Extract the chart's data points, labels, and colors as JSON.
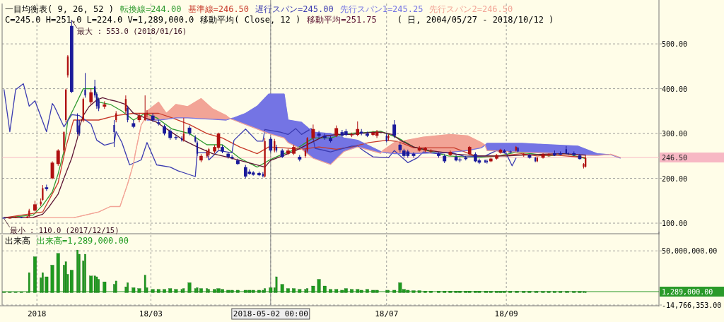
{
  "chart_data": [
    {
      "type": "candlestick",
      "title": "一目均衡表( 9, 26, 52 )",
      "subtitle": "( 日, 2004/05/27 - 2018/10/12 )",
      "annotations": [
        "C=245.0 H=251.0 L=224.0 V=1,289,000.0",
        "移動平均( Close, 12 )",
        {
          "text": "最大 : 553.0 (2018/01/16)",
          "x": "2018-01-19",
          "y": 553
        },
        {
          "text": "最小 : 110.0 (2017/12/15)",
          "x": "2017-12-15",
          "y": 110
        }
      ],
      "x": [
        "2017-12-15",
        "2017-12-18",
        "2017-12-21",
        "2017-12-24",
        "2017-12-27",
        "2017-12-28",
        "2017-12-31",
        "2018-01-03",
        "2018-01-04",
        "2018-01-06",
        "2018-01-09",
        "2018-01-12",
        "2018-01-15",
        "2018-01-16",
        "2018-01-17",
        "2018-01-19",
        "2018-01-22",
        "2018-01-23",
        "2018-01-25",
        "2018-01-26",
        "2018-01-29",
        "2018-01-31",
        "2018-02-01",
        "2018-02-02",
        "2018-02-05",
        "2018-02-10",
        "2018-02-11",
        "2018-02-16",
        "2018-02-17",
        "2018-02-20",
        "2018-02-23",
        "2018-02-26",
        "2018-02-27",
        "2018-03-02",
        "2018-03-05",
        "2018-03-08",
        "2018-03-11",
        "2018-03-14",
        "2018-03-17",
        "2018-03-18",
        "2018-03-21",
        "2018-03-24",
        "2018-03-25",
        "2018-03-27",
        "2018-03-30",
        "2018-03-31",
        "2018-04-03",
        "2018-04-05",
        "2018-04-07",
        "2018-04-10",
        "2018-04-12",
        "2018-04-15",
        "2018-04-19",
        "2018-04-21",
        "2018-04-23",
        "2018-04-26",
        "2018-04-28",
        "2018-04-29",
        "2018-05-02",
        "2018-05-04",
        "2018-05-05",
        "2018-05-08",
        "2018-05-11",
        "2018-05-14",
        "2018-05-17",
        "2018-05-20",
        "2018-05-21",
        "2018-05-24",
        "2018-05-27",
        "2018-05-30",
        "2018-06-02",
        "2018-06-05",
        "2018-06-08",
        "2018-06-10",
        "2018-06-13",
        "2018-06-16",
        "2018-06-18",
        "2018-06-21",
        "2018-06-24",
        "2018-06-26",
        "2018-07-01",
        "2018-07-02",
        "2018-07-05",
        "2018-07-08",
        "2018-07-10",
        "2018-07-12",
        "2018-07-15",
        "2018-07-18",
        "2018-07-21",
        "2018-07-24",
        "2018-07-28",
        "2018-07-31",
        "2018-08-03",
        "2018-08-06",
        "2018-08-08",
        "2018-08-11",
        "2018-08-13",
        "2018-08-16",
        "2018-08-18",
        "2018-08-21",
        "2018-08-22",
        "2018-08-24",
        "2018-08-27",
        "2018-08-29",
        "2018-08-31",
        "2018-09-03",
        "2018-09-06",
        "2018-09-07",
        "2018-09-10",
        "2018-09-13",
        "2018-09-16",
        "2018-09-17",
        "2018-09-20",
        "2018-09-23",
        "2018-09-26",
        "2018-09-29",
        "2018-10-02",
        "2018-10-03",
        "2018-10-06",
        "2018-10-09",
        "2018-10-11",
        "2018-10-12"
      ],
      "ohlc": [
        [
          112,
          114,
          110,
          111
        ],
        [
          111,
          113,
          110,
          112
        ],
        [
          112,
          115,
          111,
          113
        ],
        [
          113,
          114,
          111,
          112
        ],
        [
          112,
          116,
          111,
          115
        ],
        [
          115,
          132,
          114,
          128
        ],
        [
          128,
          150,
          126,
          142
        ],
        [
          142,
          155,
          138,
          148
        ],
        [
          152,
          185,
          150,
          178
        ],
        [
          180,
          186,
          172,
          176
        ],
        [
          200,
          238,
          198,
          235
        ],
        [
          232,
          265,
          228,
          262
        ],
        [
          262,
          305,
          258,
          303
        ],
        [
          330,
          400,
          325,
          398
        ],
        [
          430,
          475,
          425,
          472
        ],
        [
          540,
          553,
          390,
          393
        ],
        [
          330,
          345,
          298,
          303
        ],
        [
          318,
          330,
          295,
          300
        ],
        [
          330,
          380,
          325,
          377
        ],
        [
          398,
          435,
          380,
          385
        ],
        [
          370,
          400,
          365,
          392
        ],
        [
          405,
          420,
          380,
          385
        ],
        [
          388,
          392,
          355,
          361
        ],
        [
          375,
          380,
          350,
          356
        ],
        [
          360,
          372,
          355,
          365
        ],
        [
          319,
          330,
          270,
          303
        ],
        [
          330,
          350,
          325,
          345
        ],
        [
          350,
          385,
          345,
          377
        ],
        [
          357,
          362,
          325,
          330
        ],
        [
          323,
          330,
          312,
          315
        ],
        [
          330,
          345,
          325,
          340
        ],
        [
          330,
          385,
          328,
          345
        ],
        [
          342,
          352,
          336,
          346
        ],
        [
          340,
          345,
          326,
          330
        ],
        [
          325,
          330,
          318,
          322
        ],
        [
          316,
          320,
          296,
          300
        ],
        [
          306,
          310,
          286,
          290
        ],
        [
          292,
          296,
          286,
          290
        ],
        [
          290,
          294,
          282,
          285
        ],
        [
          285,
          335,
          282,
          300
        ],
        [
          313,
          318,
          296,
          300
        ],
        [
          292,
          296,
          280,
          282
        ],
        [
          280,
          284,
          250,
          255
        ],
        [
          240,
          254,
          236,
          250
        ],
        [
          250,
          264,
          246,
          260
        ],
        [
          252,
          268,
          248,
          265
        ],
        [
          260,
          274,
          256,
          270
        ],
        [
          268,
          302,
          264,
          300
        ],
        [
          270,
          274,
          256,
          260
        ],
        [
          255,
          258,
          244,
          248
        ],
        [
          248,
          252,
          242,
          245
        ],
        [
          240,
          244,
          230,
          232
        ],
        [
          225,
          230,
          200,
          204
        ],
        [
          215,
          220,
          208,
          210
        ],
        [
          213,
          216,
          206,
          208
        ],
        [
          212,
          215,
          205,
          207
        ],
        [
          210,
          214,
          202,
          205
        ],
        [
          204,
          290,
          202,
          283
        ],
        [
          288,
          292,
          258,
          262
        ],
        [
          262,
          288,
          258,
          283
        ],
        [
          270,
          275,
          258,
          262
        ],
        [
          262,
          266,
          245,
          248
        ],
        [
          255,
          266,
          252,
          262
        ],
        [
          255,
          275,
          252,
          270
        ],
        [
          248,
          252,
          238,
          242
        ],
        [
          250,
          266,
          246,
          262
        ],
        [
          262,
          292,
          258,
          290
        ],
        [
          290,
          320,
          286,
          310
        ],
        [
          300,
          306,
          290,
          295
        ],
        [
          295,
          300,
          286,
          290
        ],
        [
          290,
          294,
          280,
          283
        ],
        [
          295,
          318,
          292,
          312
        ],
        [
          303,
          308,
          292,
          295
        ],
        [
          305,
          310,
          294,
          297
        ],
        [
          296,
          302,
          292,
          298
        ],
        [
          297,
          327,
          294,
          310
        ],
        [
          304,
          310,
          296,
          300
        ],
        [
          300,
          304,
          292,
          295
        ],
        [
          297,
          306,
          294,
          302
        ],
        [
          295,
          308,
          290,
          304
        ],
        [
          295,
          300,
          280,
          283
        ],
        [
          290,
          298,
          284,
          294
        ],
        [
          320,
          330,
          290,
          295
        ],
        [
          275,
          278,
          258,
          263
        ],
        [
          262,
          266,
          246,
          250
        ],
        [
          260,
          264,
          246,
          250
        ],
        [
          255,
          258,
          246,
          250
        ],
        [
          262,
          272,
          260,
          268
        ],
        [
          262,
          270,
          258,
          268
        ],
        [
          260,
          265,
          256,
          262
        ],
        [
          255,
          258,
          246,
          250
        ],
        [
          250,
          254,
          234,
          238
        ],
        [
          252,
          262,
          250,
          259
        ],
        [
          248,
          252,
          238,
          240
        ],
        [
          242,
          246,
          236,
          240
        ],
        [
          246,
          250,
          240,
          243
        ],
        [
          254,
          272,
          252,
          270
        ],
        [
          254,
          258,
          236,
          238
        ],
        [
          240,
          244,
          232,
          235
        ],
        [
          240,
          242,
          234,
          236
        ],
        [
          239,
          242,
          233,
          236
        ],
        [
          238,
          246,
          236,
          244
        ],
        [
          244,
          254,
          242,
          252
        ],
        [
          257,
          266,
          255,
          264
        ],
        [
          262,
          265,
          256,
          258
        ],
        [
          260,
          262,
          256,
          258
        ],
        [
          262,
          272,
          260,
          270
        ],
        [
          268,
          270,
          258,
          260
        ],
        [
          252,
          256,
          248,
          254
        ],
        [
          252,
          254,
          244,
          246
        ],
        [
          246,
          248,
          236,
          238
        ],
        [
          238,
          248,
          236,
          246
        ],
        [
          246,
          256,
          244,
          254
        ],
        [
          252,
          256,
          248,
          254
        ],
        [
          256,
          262,
          250,
          251
        ],
        [
          256,
          260,
          252,
          253
        ],
        [
          265,
          272,
          254,
          255
        ],
        [
          256,
          258,
          252,
          254
        ],
        [
          256,
          260,
          250,
          252
        ],
        [
          251,
          254,
          242,
          243
        ],
        [
          226,
          234,
          222,
          232
        ],
        [
          226,
          251,
          224,
          245
        ]
      ],
      "series": [
        {
          "name": "転換線=244.00",
          "type": "line",
          "color": "#2e9a2e",
          "x": [
            "2017-12-15",
            "2017-12-30",
            "2018-01-04",
            "2018-01-09",
            "2018-01-12",
            "2018-01-15",
            "2018-01-17",
            "2018-01-20",
            "2018-01-25",
            "2018-01-31",
            "2018-02-02",
            "2018-02-08",
            "2018-02-14",
            "2018-02-20",
            "2018-02-26",
            "2018-03-04",
            "2018-03-12",
            "2018-03-21",
            "2018-03-30",
            "2018-04-07",
            "2018-04-16",
            "2018-04-25",
            "2018-05-01",
            "2018-05-07",
            "2018-05-15",
            "2018-05-24",
            "2018-06-02",
            "2018-06-10",
            "2018-06-19",
            "2018-06-28",
            "2018-07-07",
            "2018-07-15",
            "2018-07-24",
            "2018-08-02",
            "2018-08-11",
            "2018-08-19",
            "2018-08-28",
            "2018-09-06",
            "2018-09-14",
            "2018-09-23",
            "2018-10-02",
            "2018-10-12"
          ],
          "values": [
            112,
            118,
            140,
            170,
            210,
            260,
            330,
            355,
            400,
            400,
            370,
            365,
            350,
            330,
            345,
            335,
            310,
            300,
            275,
            275,
            245,
            225,
            240,
            252,
            265,
            290,
            290,
            300,
            302,
            305,
            290,
            270,
            260,
            250,
            248,
            247,
            250,
            258,
            255,
            250,
            255,
            244
          ]
        },
        {
          "name": "基準線=246.50",
          "type": "line",
          "color": "#c83a2a",
          "x": [
            "2017-12-15",
            "2018-01-04",
            "2018-01-12",
            "2018-01-16",
            "2018-01-20",
            "2018-02-02",
            "2018-02-11",
            "2018-02-20",
            "2018-03-05",
            "2018-03-12",
            "2018-03-21",
            "2018-03-30",
            "2018-04-07",
            "2018-04-16",
            "2018-04-25",
            "2018-05-01",
            "2018-05-09",
            "2018-05-18",
            "2018-05-27",
            "2018-06-05",
            "2018-06-13",
            "2018-06-22",
            "2018-07-01",
            "2018-07-07",
            "2018-07-15",
            "2018-07-24",
            "2018-08-05",
            "2018-08-16",
            "2018-08-28",
            "2018-09-09",
            "2018-09-17",
            "2018-09-26",
            "2018-10-12"
          ],
          "values": [
            112,
            125,
            190,
            270,
            330,
            330,
            340,
            345,
            345,
            335,
            320,
            300,
            290,
            270,
            255,
            270,
            268,
            265,
            270,
            265,
            270,
            280,
            285,
            282,
            268,
            268,
            268,
            250,
            250,
            255,
            250,
            252,
            246.5
          ]
        },
        {
          "name": "遅行スパン=245.00",
          "type": "line",
          "color": "#3b3bb0",
          "x": [
            "2017-12-15",
            "2017-12-18",
            "2017-12-21",
            "2017-12-25",
            "2017-12-28",
            "2017-12-31",
            "2018-01-06",
            "2018-01-09",
            "2018-01-10",
            "2018-01-15",
            "2018-01-19",
            "2018-01-23",
            "2018-01-29",
            "2018-02-01",
            "2018-02-05",
            "2018-02-10",
            "2018-02-11",
            "2018-02-14",
            "2018-02-18",
            "2018-02-24",
            "2018-02-27",
            "2018-03-04",
            "2018-03-11",
            "2018-03-15",
            "2018-03-24",
            "2018-03-25",
            "2018-03-30",
            "2018-03-31",
            "2018-04-05",
            "2018-04-12",
            "2018-04-13",
            "2018-04-19",
            "2018-04-25",
            "2018-04-28",
            "2018-04-29",
            "2018-05-07",
            "2018-05-11",
            "2018-05-15",
            "2018-05-18",
            "2018-05-23",
            "2018-05-25",
            "2018-06-02",
            "2018-06-13",
            "2018-06-16",
            "2018-06-19",
            "2018-06-24",
            "2018-07-02",
            "2018-07-05",
            "2018-07-12",
            "2018-07-17",
            "2018-07-20",
            "2018-07-27",
            "2018-08-03",
            "2018-08-11",
            "2018-08-21",
            "2018-08-27",
            "2018-09-01",
            "2018-09-04",
            "2018-09-06"
          ],
          "values": [
            398,
            304,
            398,
            411,
            361,
            373,
            304,
            367,
            361,
            315,
            342,
            340,
            321,
            285,
            274,
            280,
            304,
            280,
            230,
            241,
            280,
            230,
            225,
            217,
            204,
            257,
            257,
            241,
            262,
            257,
            285,
            310,
            283,
            283,
            309,
            303,
            298,
            311,
            298,
            311,
            267,
            259,
            272,
            272,
            262,
            248,
            246,
            262,
            235,
            246,
            259,
            255,
            258,
            248,
            250,
            262,
            255,
            228,
            245
          ]
        },
        {
          "name": "先行スパン1=245.25",
          "type": "line",
          "color": "#7474e4",
          "x": [
            "2018-02-27",
            "2018-03-05",
            "2018-03-09",
            "2018-03-14",
            "2018-03-20",
            "2018-03-27",
            "2018-04-02",
            "2018-04-09",
            "2018-04-11",
            "2018-04-13",
            "2018-04-19",
            "2018-04-25",
            "2018-05-01",
            "2018-05-09",
            "2018-05-11",
            "2018-05-18",
            "2018-05-24",
            "2018-06-02",
            "2018-06-09",
            "2018-06-16",
            "2018-06-28",
            "2018-06-29",
            "2018-07-05",
            "2018-07-20",
            "2018-08-03",
            "2018-08-12",
            "2018-08-19",
            "2018-08-21",
            "2018-08-22",
            "2018-09-09",
            "2018-09-23",
            "2018-10-08",
            "2018-10-18",
            "2018-10-24",
            "2018-10-25",
            "2018-10-30"
          ],
          "values": [
            330,
            330,
            332,
            335,
            335,
            333,
            332,
            330,
            333,
            335,
            345,
            361,
            388,
            388,
            330,
            325,
            303,
            300,
            290,
            285,
            260,
            258,
            255,
            256,
            258,
            262,
            268,
            274,
            278,
            278,
            275,
            272,
            255,
            253,
            253,
            245.25
          ],
          "lower": [
            null,
            null,
            null,
            null,
            null,
            null,
            null,
            null,
            333,
            330,
            320,
            310,
            300,
            290,
            280,
            265,
            245,
            231,
            260,
            270,
            256,
            null,
            null,
            null,
            null,
            null,
            null,
            274,
            262,
            258,
            256,
            252,
            251,
            253,
            null,
            null
          ],
          "upper": [
            null,
            null,
            null,
            null,
            null,
            null,
            null,
            null,
            333,
            335,
            345,
            361,
            388,
            388,
            330,
            325,
            303,
            300,
            290,
            285,
            260,
            null,
            null,
            null,
            null,
            null,
            null,
            274,
            278,
            278,
            275,
            272,
            255,
            253,
            null,
            null
          ]
        },
        {
          "name": "先行スパン2=246.50",
          "type": "line",
          "color": "#f2a496",
          "x": [
            "2017-12-15",
            "2018-01-20",
            "2018-02-02",
            "2018-02-08",
            "2018-02-13",
            "2018-02-17",
            "2018-02-20",
            "2018-02-21",
            "2018-02-24",
            "2018-02-26",
            "2018-02-27",
            "2018-03-05",
            "2018-03-09",
            "2018-03-14",
            "2018-03-20",
            "2018-03-27",
            "2018-04-02",
            "2018-04-09",
            "2018-04-11",
            "2018-04-13",
            "2018-04-19",
            "2018-04-25",
            "2018-05-01",
            "2018-05-09",
            "2018-05-11",
            "2018-05-18",
            "2018-05-24",
            "2018-06-02",
            "2018-06-09",
            "2018-06-16",
            "2018-06-28",
            "2018-06-29",
            "2018-07-05",
            "2018-07-20",
            "2018-08-03",
            "2018-08-12",
            "2018-08-19",
            "2018-08-21",
            "2018-08-22",
            "2018-09-09",
            "2018-09-23",
            "2018-10-08",
            "2018-10-18",
            "2018-10-24",
            "2018-10-25",
            "2018-10-30"
          ],
          "values": [
            112,
            112,
            125,
            137,
            137,
            188,
            233,
            257,
            319,
            334,
            350,
            370,
            345,
            365,
            360,
            378,
            355,
            340,
            333,
            330,
            320,
            310,
            300,
            290,
            280,
            265,
            245,
            231,
            260,
            270,
            256,
            262,
            280,
            292,
            298,
            295,
            280,
            274,
            262,
            258,
            256,
            252,
            251,
            253,
            254,
            246.5
          ],
          "lower": [
            112,
            112,
            125,
            137,
            137,
            188,
            233,
            257,
            319,
            334,
            330,
            330,
            332,
            335,
            335,
            333,
            332,
            330,
            333,
            null,
            null,
            null,
            null,
            null,
            null,
            null,
            null,
            null,
            null,
            null,
            null,
            258,
            255,
            256,
            258,
            262,
            268,
            274,
            null,
            null,
            null,
            null,
            null,
            253,
            253,
            245.25
          ],
          "upper": [
            112,
            112,
            125,
            137,
            137,
            188,
            233,
            257,
            319,
            334,
            350,
            370,
            345,
            365,
            360,
            378,
            355,
            340,
            333,
            null,
            null,
            null,
            null,
            null,
            null,
            null,
            null,
            null,
            null,
            null,
            null,
            262,
            280,
            292,
            298,
            295,
            280,
            274,
            null,
            null,
            null,
            null,
            null,
            253,
            254,
            246.5
          ]
        },
        {
          "name": "移動平均=251.75",
          "type": "line",
          "color": "#5c1432",
          "x": [
            "2017-12-15",
            "2017-12-30",
            "2018-01-04",
            "2018-01-07",
            "2018-01-12",
            "2018-01-15",
            "2018-01-19",
            "2018-01-22",
            "2018-01-23",
            "2018-01-25",
            "2018-01-28",
            "2018-02-01",
            "2018-02-04",
            "2018-02-08",
            "2018-02-11",
            "2018-02-16",
            "2018-02-20",
            "2018-02-26",
            "2018-03-04",
            "2018-03-11",
            "2018-03-18",
            "2018-03-25",
            "2018-04-02",
            "2018-04-09",
            "2018-04-16",
            "2018-04-23",
            "2018-04-29",
            "2018-05-02",
            "2018-05-08",
            "2018-05-15",
            "2018-05-23",
            "2018-05-30",
            "2018-06-06",
            "2018-06-13",
            "2018-06-21",
            "2018-06-28",
            "2018-07-04",
            "2018-07-08",
            "2018-07-15",
            "2018-07-23",
            "2018-07-30",
            "2018-08-06",
            "2018-08-18",
            "2018-09-01",
            "2018-09-16",
            "2018-09-30",
            "2018-10-12"
          ],
          "values": [
            112,
            113,
            120,
            135,
            165,
            200,
            245,
            290,
            315,
            340,
            360,
            375,
            380,
            375,
            372,
            365,
            345,
            335,
            325,
            305,
            285,
            270,
            255,
            248,
            240,
            232,
            225,
            240,
            250,
            262,
            280,
            295,
            298,
            298,
            302,
            303,
            298,
            285,
            270,
            262,
            258,
            254,
            250,
            250,
            253,
            255,
            251.75
          ]
        }
      ],
      "xlim": [
        "2017-12-14",
        "2018-11-19"
      ],
      "ylim": [
        78,
        590
      ],
      "xticks": [
        {
          "value": "2018",
          "label": null
        },
        {
          "value": "2018-03",
          "label": null
        },
        {
          "value": "2018-05-02T00:00",
          "label": null
        },
        {
          "value": "2018-07",
          "label": null
        },
        {
          "value": "2018-09",
          "label": null
        }
      ],
      "yticks": [
        {
          "value": 100,
          "label": "100.00"
        },
        {
          "value": 200,
          "label": "200.00"
        },
        {
          "value": 300,
          "label": "300.00"
        },
        {
          "value": 400,
          "label": "400.00"
        },
        {
          "value": 500,
          "label": "500.00"
        }
      ],
      "ref_lines": [
        {
          "axis": "x",
          "value": "2018-05-02T00:00",
          "color": "#8a8a8a"
        },
        {
          "axis": "y",
          "value": 246.5,
          "label": "246.50",
          "color": "#f7b8c4"
        }
      ],
      "grid": true,
      "legend": "top",
      "tick_labels": "y"
    },
    {
      "type": "bar",
      "title": "出来高",
      "x": [
        "2017-12-15",
        "2017-12-18",
        "2017-12-21",
        "2017-12-24",
        "2017-12-27",
        "2017-12-28",
        "2017-12-31",
        "2018-01-03",
        "2018-01-04",
        "2018-01-06",
        "2018-01-09",
        "2018-01-12",
        "2018-01-15",
        "2018-01-16",
        "2018-01-17",
        "2018-01-19",
        "2018-01-22",
        "2018-01-23",
        "2018-01-25",
        "2018-01-26",
        "2018-01-29",
        "2018-01-31",
        "2018-02-01",
        "2018-02-02",
        "2018-02-05",
        "2018-02-10",
        "2018-02-11",
        "2018-02-16",
        "2018-02-17",
        "2018-02-20",
        "2018-02-23",
        "2018-02-26",
        "2018-02-27",
        "2018-03-02",
        "2018-03-05",
        "2018-03-08",
        "2018-03-11",
        "2018-03-14",
        "2018-03-17",
        "2018-03-18",
        "2018-03-21",
        "2018-03-24",
        "2018-03-25",
        "2018-03-27",
        "2018-03-30",
        "2018-03-31",
        "2018-04-03",
        "2018-04-05",
        "2018-04-07",
        "2018-04-10",
        "2018-04-12",
        "2018-04-15",
        "2018-04-19",
        "2018-04-21",
        "2018-04-23",
        "2018-04-26",
        "2018-04-28",
        "2018-04-29",
        "2018-05-02",
        "2018-05-04",
        "2018-05-05",
        "2018-05-08",
        "2018-05-11",
        "2018-05-14",
        "2018-05-17",
        "2018-05-20",
        "2018-05-21",
        "2018-05-24",
        "2018-05-27",
        "2018-05-30",
        "2018-06-02",
        "2018-06-05",
        "2018-06-08",
        "2018-06-10",
        "2018-06-13",
        "2018-06-16",
        "2018-06-18",
        "2018-06-21",
        "2018-06-24",
        "2018-06-26",
        "2018-07-01",
        "2018-07-02",
        "2018-07-05",
        "2018-07-08",
        "2018-07-10",
        "2018-07-12",
        "2018-07-15",
        "2018-07-18",
        "2018-07-21",
        "2018-07-24",
        "2018-07-28",
        "2018-07-31",
        "2018-08-03",
        "2018-08-06",
        "2018-08-08",
        "2018-08-11",
        "2018-08-13",
        "2018-08-16",
        "2018-08-18",
        "2018-08-21",
        "2018-08-22",
        "2018-08-24",
        "2018-08-27",
        "2018-08-29",
        "2018-08-31",
        "2018-09-03",
        "2018-09-06",
        "2018-09-07",
        "2018-09-10",
        "2018-09-13",
        "2018-09-16",
        "2018-09-17",
        "2018-09-20",
        "2018-09-23",
        "2018-09-26",
        "2018-09-29",
        "2018-10-02",
        "2018-10-03",
        "2018-10-06",
        "2018-10-09",
        "2018-10-11",
        "2018-10-12"
      ],
      "series": [
        {
          "name": "出来高=1,289,000.00",
          "color": "#1e9a1e",
          "values": [
            800000,
            800000,
            800000,
            800000,
            800000,
            24000000,
            43000000,
            18000000,
            24000000,
            19000000,
            33000000,
            47000000,
            33000000,
            37000000,
            22000000,
            27000000,
            51000000,
            46000000,
            38000000,
            46000000,
            20000000,
            20000000,
            19000000,
            16000000,
            13000000,
            10000000,
            14000000,
            7000000,
            12000000,
            6000000,
            5000000,
            21000000,
            6000000,
            4000000,
            4000000,
            4000000,
            5000000,
            4000000,
            4000000,
            5000000,
            12000000,
            5000000,
            6000000,
            5000000,
            5000000,
            4000000,
            4000000,
            5000000,
            4000000,
            3000000,
            3000000,
            3000000,
            3000000,
            3000000,
            3000000,
            3000000,
            3000000,
            5000000,
            6000000,
            6000000,
            19000000,
            10000000,
            5000000,
            5000000,
            4000000,
            4000000,
            5000000,
            8000000,
            16000000,
            8000000,
            4000000,
            4000000,
            3000000,
            5000000,
            4000000,
            4000000,
            3000000,
            4000000,
            3000000,
            3000000,
            3000000,
            3000000,
            3000000,
            12000000,
            4000000,
            3000000,
            2500000,
            2500000,
            2000000,
            2000000,
            2000000,
            2000000,
            2000000,
            2000000,
            2000000,
            2000000,
            2000000,
            2000000,
            2000000,
            2000000,
            1800000,
            1800000,
            1800000,
            1800000,
            1800000,
            1800000,
            1800000,
            1800000,
            1800000,
            1800000,
            1600000,
            1600000,
            1600000,
            1600000,
            1600000,
            1600000,
            1600000,
            1600000,
            1600000,
            1600000,
            1500000,
            1289000
          ]
        }
      ],
      "xlim": [
        "2017-12-14",
        "2018-11-19"
      ],
      "ylim": [
        -14766353,
        68800000
      ],
      "xticks": [
        {
          "value": "2018",
          "label": "2018"
        },
        {
          "value": "2018-03",
          "label": "18/03"
        },
        {
          "value": "2018-05-02T00:00",
          "label": "2018-05-02 00:00"
        },
        {
          "value": "2018-07",
          "label": "18/07"
        },
        {
          "value": "2018-09",
          "label": "18/09"
        }
      ],
      "yticks": [
        {
          "value": 50000000,
          "label": "50,000,000.00"
        },
        {
          "value": -14766353,
          "label": "-14,766,353.00"
        }
      ],
      "ref_lines": [
        {
          "axis": "x",
          "value": "2018-05-02T00:00",
          "color": "#8a8a8a"
        },
        {
          "axis": "y",
          "value": 1289000,
          "label": "1,289,000.00",
          "color": "#2a9a2a"
        }
      ],
      "grid": true,
      "legend": "top"
    }
  ]
}
